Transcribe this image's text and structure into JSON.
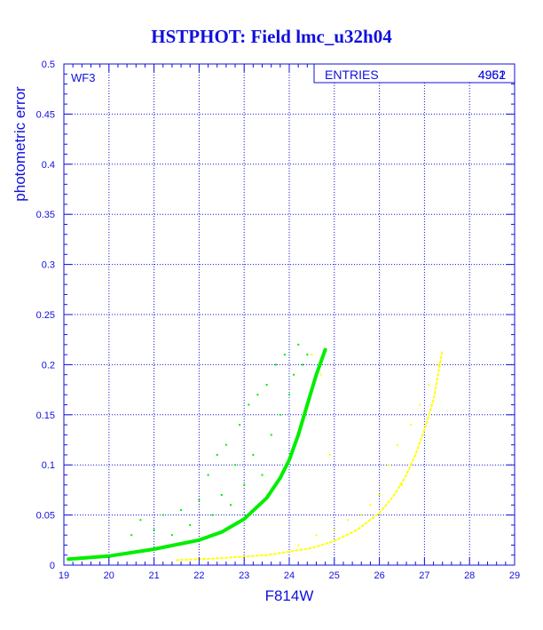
{
  "chart_data": {
    "type": "scatter",
    "title": "HSTPHOT: Field lmc_u32h04",
    "xlabel": "F814W",
    "ylabel": "photometric error",
    "panel_label": "WF3",
    "stats_label": "ENTRIES",
    "stats_value_a": "4961",
    "stats_value_b": "4952",
    "xlim": [
      19,
      29
    ],
    "ylim": [
      0,
      0.5
    ],
    "x_ticks": [
      "19",
      "20",
      "21",
      "22",
      "23",
      "24",
      "25",
      "26",
      "27",
      "28",
      "29"
    ],
    "y_ticks": [
      "0",
      "0.05",
      "0.1",
      "0.15",
      "0.2",
      "0.25",
      "0.3",
      "0.35",
      "0.4",
      "0.45",
      "0.5"
    ],
    "grid": true,
    "series": [
      {
        "color": "#00ee00",
        "curve": [
          [
            19.1,
            0.006
          ],
          [
            20.0,
            0.009
          ],
          [
            21.0,
            0.016
          ],
          [
            22.0,
            0.025
          ],
          [
            22.5,
            0.033
          ],
          [
            23.0,
            0.046
          ],
          [
            23.5,
            0.067
          ],
          [
            23.8,
            0.087
          ],
          [
            24.0,
            0.105
          ],
          [
            24.2,
            0.13
          ],
          [
            24.4,
            0.16
          ],
          [
            24.6,
            0.19
          ],
          [
            24.8,
            0.215
          ]
        ],
        "scatter": [
          [
            20.5,
            0.03
          ],
          [
            20.7,
            0.045
          ],
          [
            21.0,
            0.035
          ],
          [
            21.2,
            0.05
          ],
          [
            21.4,
            0.03
          ],
          [
            21.6,
            0.055
          ],
          [
            21.8,
            0.04
          ],
          [
            22.0,
            0.065
          ],
          [
            22.2,
            0.09
          ],
          [
            22.3,
            0.05
          ],
          [
            22.4,
            0.11
          ],
          [
            22.5,
            0.07
          ],
          [
            22.6,
            0.12
          ],
          [
            22.7,
            0.06
          ],
          [
            22.8,
            0.1
          ],
          [
            22.9,
            0.14
          ],
          [
            23.0,
            0.08
          ],
          [
            23.1,
            0.16
          ],
          [
            23.2,
            0.11
          ],
          [
            23.3,
            0.17
          ],
          [
            23.4,
            0.09
          ],
          [
            23.5,
            0.18
          ],
          [
            23.6,
            0.13
          ],
          [
            23.7,
            0.2
          ],
          [
            23.8,
            0.15
          ],
          [
            23.9,
            0.21
          ],
          [
            24.0,
            0.17
          ],
          [
            24.1,
            0.19
          ],
          [
            24.2,
            0.22
          ],
          [
            24.3,
            0.2
          ],
          [
            24.4,
            0.21
          ]
        ]
      },
      {
        "color": "#ffff00",
        "curve": [
          [
            21.5,
            0.005
          ],
          [
            22.5,
            0.007
          ],
          [
            23.5,
            0.01
          ],
          [
            24.5,
            0.017
          ],
          [
            25.0,
            0.024
          ],
          [
            25.5,
            0.035
          ],
          [
            26.0,
            0.052
          ],
          [
            26.3,
            0.068
          ],
          [
            26.6,
            0.09
          ],
          [
            26.8,
            0.11
          ],
          [
            27.0,
            0.135
          ],
          [
            27.2,
            0.165
          ],
          [
            27.4,
            0.215
          ]
        ],
        "scatter": [
          [
            24.2,
            0.02
          ],
          [
            24.6,
            0.03
          ],
          [
            25.0,
            0.035
          ],
          [
            25.3,
            0.045
          ],
          [
            25.6,
            0.05
          ],
          [
            25.8,
            0.06
          ],
          [
            26.0,
            0.07
          ],
          [
            26.2,
            0.1
          ],
          [
            26.4,
            0.12
          ],
          [
            26.5,
            0.08
          ],
          [
            26.7,
            0.14
          ],
          [
            26.9,
            0.16
          ],
          [
            27.1,
            0.18
          ],
          [
            27.3,
            0.2
          ],
          [
            24.9,
            0.11
          ],
          [
            24.7,
            0.19
          ],
          [
            24.5,
            0.21
          ]
        ]
      }
    ]
  }
}
